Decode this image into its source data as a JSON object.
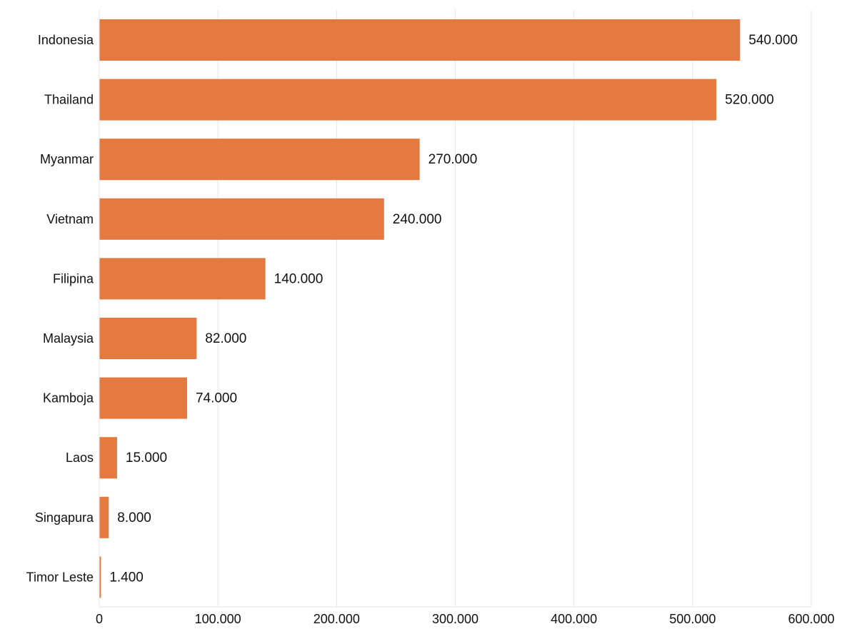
{
  "chart_data": {
    "type": "bar",
    "orientation": "horizontal",
    "categories": [
      "Indonesia",
      "Thailand",
      "Myanmar",
      "Vietnam",
      "Filipina",
      "Malaysia",
      "Kamboja",
      "Laos",
      "Singapura",
      "Timor Leste"
    ],
    "values": [
      540000,
      520000,
      270000,
      240000,
      140000,
      82000,
      74000,
      15000,
      8000,
      1400
    ],
    "value_labels": [
      "540.000",
      "520.000",
      "270.000",
      "240.000",
      "140.000",
      "82.000",
      "74.000",
      "15.000",
      "8.000",
      "1.400"
    ],
    "x_ticks": [
      0,
      100000,
      200000,
      300000,
      400000,
      500000,
      600000
    ],
    "x_tick_labels": [
      "0",
      "100.000",
      "200.000",
      "300.000",
      "400.000",
      "500.000",
      "600.000"
    ],
    "xlim": [
      0,
      600000
    ],
    "grid": "vertical",
    "title": "",
    "xlabel": "",
    "ylabel": "",
    "bar_color": "#E47A3F",
    "grid_color": "#E6E6E6"
  }
}
